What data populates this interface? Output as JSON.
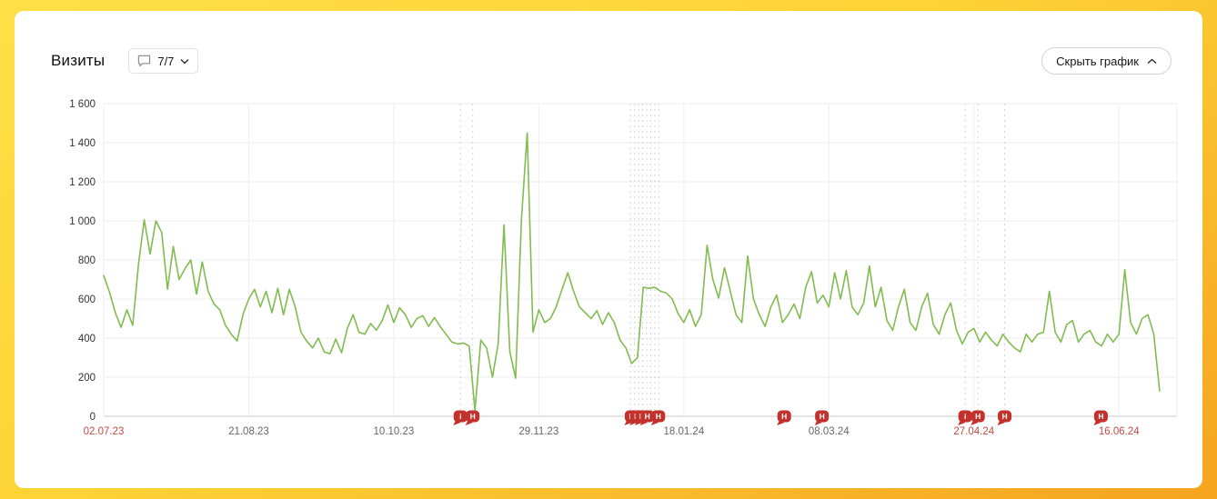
{
  "header": {
    "title": "Визиты",
    "comments": {
      "label": "7/7"
    },
    "hide_button": {
      "label": "Скрыть график"
    }
  },
  "chart_data": {
    "type": "line",
    "title": "Визиты",
    "series_name": "Визиты",
    "line_color": "#82bb4f",
    "grid": true,
    "legend_position": "none",
    "ylim": [
      0,
      1600
    ],
    "y_ticks": [
      0,
      200,
      400,
      600,
      800,
      1000,
      1200,
      1400,
      1600
    ],
    "y_tick_labels": [
      "0",
      "200",
      "400",
      "600",
      "800",
      "1 000",
      "1 200",
      "1 400",
      "1 600"
    ],
    "x_tick_indices": [
      0,
      25,
      50,
      75,
      100,
      125,
      150,
      175
    ],
    "x_tick_labels": [
      "02.07.23",
      "21.08.23",
      "10.10.23",
      "29.11.23",
      "18.01.24",
      "08.03.24",
      "27.04.24",
      "16.06.24"
    ],
    "x_tick_red": [
      true,
      false,
      false,
      false,
      false,
      false,
      true,
      true
    ],
    "x_label_gray_color": "#666666",
    "x_label_red_color": "#bf4b43",
    "annotation_color": "#c4302b",
    "values": [
      720,
      635,
      530,
      455,
      545,
      465,
      780,
      1005,
      830,
      1000,
      940,
      650,
      870,
      700,
      755,
      800,
      625,
      790,
      640,
      575,
      545,
      465,
      420,
      385,
      520,
      600,
      650,
      560,
      640,
      530,
      655,
      520,
      650,
      560,
      430,
      385,
      350,
      400,
      330,
      320,
      395,
      325,
      450,
      520,
      430,
      420,
      475,
      440,
      490,
      570,
      480,
      555,
      520,
      455,
      500,
      515,
      460,
      505,
      460,
      420,
      380,
      370,
      375,
      360,
      30,
      390,
      350,
      200,
      370,
      980,
      330,
      195,
      1000,
      1450,
      430,
      545,
      480,
      500,
      560,
      650,
      735,
      640,
      560,
      530,
      500,
      540,
      470,
      530,
      480,
      390,
      350,
      270,
      300,
      660,
      655,
      660,
      640,
      630,
      600,
      525,
      480,
      545,
      460,
      520,
      875,
      700,
      605,
      760,
      640,
      520,
      480,
      820,
      600,
      520,
      460,
      560,
      620,
      480,
      520,
      575,
      500,
      660,
      740,
      580,
      620,
      560,
      735,
      600,
      745,
      560,
      520,
      580,
      770,
      560,
      660,
      490,
      440,
      560,
      650,
      480,
      440,
      560,
      630,
      470,
      420,
      520,
      580,
      440,
      370,
      430,
      450,
      380,
      430,
      390,
      360,
      420,
      380,
      350,
      330,
      420,
      380,
      420,
      430,
      640,
      430,
      380,
      470,
      490,
      380,
      420,
      440,
      380,
      360,
      420,
      380,
      420,
      750,
      480,
      420,
      500,
      520,
      420,
      130
    ],
    "marker_lines": [
      61.5,
      63.6,
      90.8,
      91.5,
      92.2,
      92.9,
      93.6,
      94.3,
      95.0,
      95.7,
      148.5,
      150.7,
      155.3
    ],
    "annotations": [
      {
        "i": 61.5,
        "label": "i"
      },
      {
        "i": 63.6,
        "label": "Н"
      },
      {
        "i": 91.0,
        "label": "Н"
      },
      {
        "i": 91.9,
        "label": "Н"
      },
      {
        "i": 92.8,
        "label": "Н"
      },
      {
        "i": 93.7,
        "label": "Н"
      },
      {
        "i": 95.6,
        "label": "Н"
      },
      {
        "i": 117.3,
        "label": "Н"
      },
      {
        "i": 123.8,
        "label": "Н"
      },
      {
        "i": 148.5,
        "label": "i"
      },
      {
        "i": 150.7,
        "label": "Н"
      },
      {
        "i": 155.3,
        "label": "Н"
      },
      {
        "i": 171.9,
        "label": "Н"
      }
    ]
  }
}
